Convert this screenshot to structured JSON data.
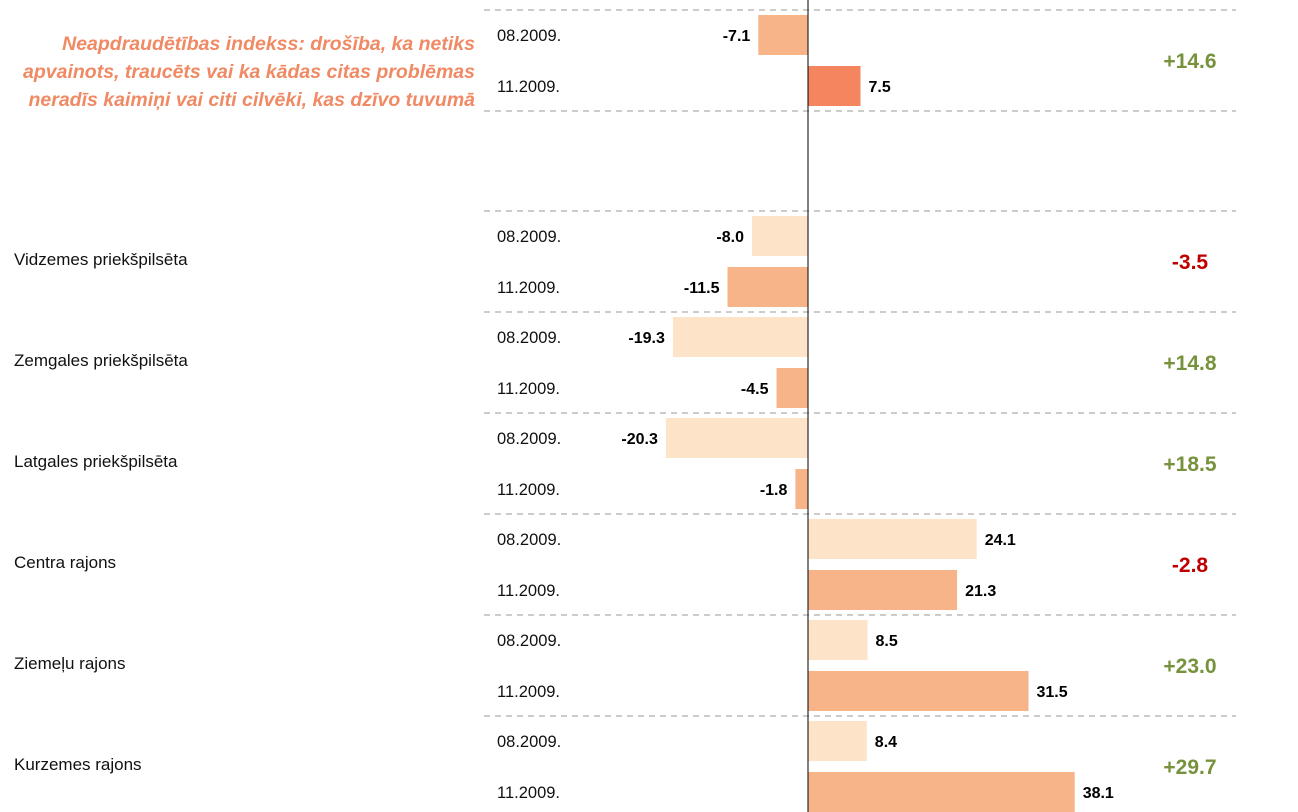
{
  "chart_data": {
    "type": "bar",
    "title": "Neapdraudētības indekss: drošība, ka netiks apvainots, traucēts vai ka kādas citas problēmas neradīs kaimiņi vai citi cilvēki, kas dzīvo tuvumā",
    "series_labels": [
      "08.2009.",
      "11.2009."
    ],
    "groups": [
      {
        "name": "",
        "values": [
          -7.1,
          7.5
        ],
        "value_labels": [
          "-7.1",
          "7.5"
        ],
        "change": "+14.6",
        "change_color": "#76923c",
        "colors": [
          "#f7b488",
          "#f5855f"
        ]
      },
      {
        "name": "Vidzemes priekšpilsēta",
        "values": [
          -8.0,
          -11.5
        ],
        "value_labels": [
          "-8.0",
          "-11.5"
        ],
        "change": "-3.5",
        "change_color": "#c00000",
        "colors": [
          "#fde3c8",
          "#f7b488"
        ]
      },
      {
        "name": "Zemgales priekšpilsēta",
        "values": [
          -19.3,
          -4.5
        ],
        "value_labels": [
          "-19.3",
          "-4.5"
        ],
        "change": "+14.8",
        "change_color": "#76923c",
        "colors": [
          "#fde3c8",
          "#f7b488"
        ]
      },
      {
        "name": "Latgales priekšpilsēta",
        "values": [
          -20.3,
          -1.8
        ],
        "value_labels": [
          "-20.3",
          "-1.8"
        ],
        "change": "+18.5",
        "change_color": "#76923c",
        "colors": [
          "#fde3c8",
          "#f7b488"
        ]
      },
      {
        "name": "Centra rajons",
        "values": [
          24.1,
          21.3
        ],
        "value_labels": [
          "24.1",
          "21.3"
        ],
        "change": "-2.8",
        "change_color": "#c00000",
        "colors": [
          "#fde3c8",
          "#f7b488"
        ]
      },
      {
        "name": "Ziemeļu rajons",
        "values": [
          8.5,
          31.5
        ],
        "value_labels": [
          "8.5",
          "31.5"
        ],
        "change": "+23.0",
        "change_color": "#76923c",
        "colors": [
          "#fde3c8",
          "#f7b488"
        ]
      },
      {
        "name": "Kurzemes rajons",
        "values": [
          8.4,
          38.1
        ],
        "value_labels": [
          "8.4",
          "38.1"
        ],
        "change": "+29.7",
        "change_color": "#76923c",
        "colors": [
          "#fde3c8",
          "#f7b488"
        ]
      }
    ],
    "grid": "dashed separators between groups",
    "axis_color": "#000000"
  }
}
